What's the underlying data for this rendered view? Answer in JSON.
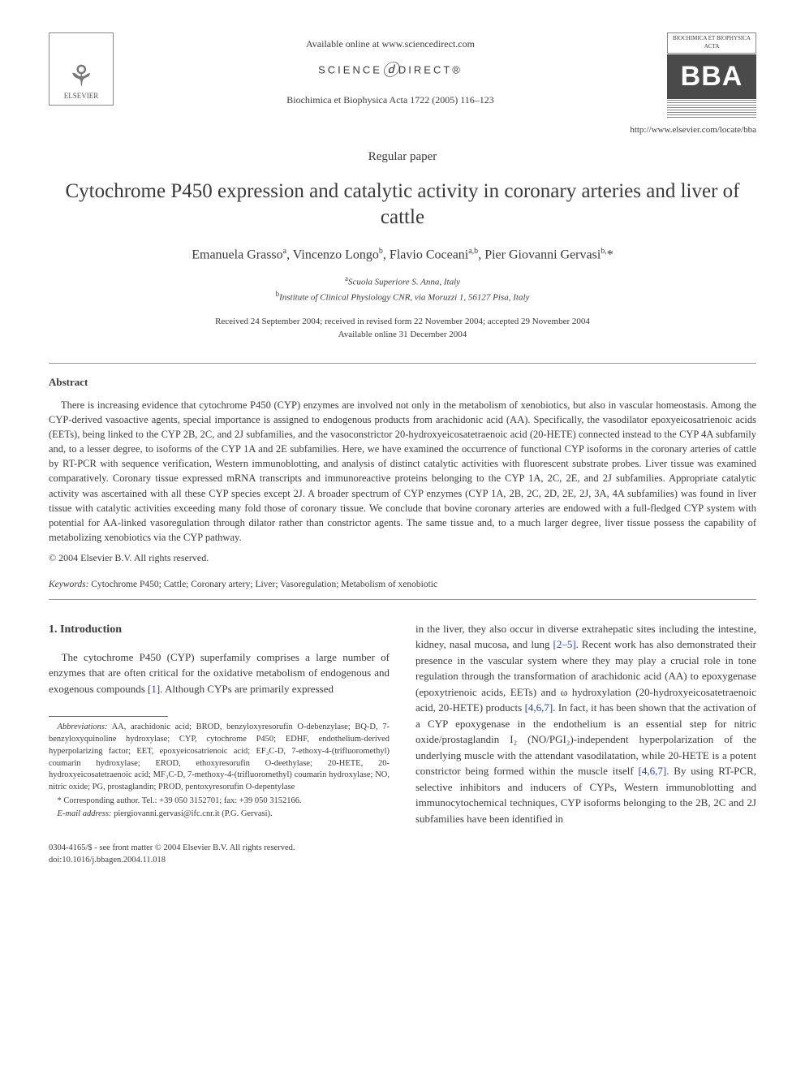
{
  "header": {
    "available_online": "Available online at www.sciencedirect.com",
    "sciencedirect_left": "SCIENCE",
    "sciencedirect_right": "DIRECT®",
    "journal_ref": "Biochimica et Biophysica Acta 1722 (2005) 116–123",
    "elsevier_label": "ELSEVIER",
    "bba_top": "BIOCHIMICA ET BIOPHYSICA ACTA",
    "bba_main": "BBA",
    "locate_url": "http://www.elsevier.com/locate/bba"
  },
  "paper": {
    "type": "Regular paper",
    "title": "Cytochrome P450 expression and catalytic activity in coronary arteries and liver of cattle",
    "authors_html": "Emanuela Grasso<sup>a</sup>, Vincenzo Longo<sup>b</sup>, Flavio Coceani<sup>a,b</sup>, Pier Giovanni Gervasi<sup>b,</sup>*",
    "affiliations": [
      {
        "sup": "a",
        "text": "Scuola Superiore S. Anna, Italy"
      },
      {
        "sup": "b",
        "text": "Institute of Clinical Physiology CNR, via Moruzzi 1, 56127 Pisa, Italy"
      }
    ],
    "dates_line1": "Received 24 September 2004; received in revised form 22 November 2004; accepted 29 November 2004",
    "dates_line2": "Available online 31 December 2004"
  },
  "abstract": {
    "heading": "Abstract",
    "body": "There is increasing evidence that cytochrome P450 (CYP) enzymes are involved not only in the metabolism of xenobiotics, but also in vascular homeostasis. Among the CYP-derived vasoactive agents, special importance is assigned to endogenous products from arachidonic acid (AA). Specifically, the vasodilator epoxyeicosatrienoic acids (EETs), being linked to the CYP 2B, 2C, and 2J subfamilies, and the vasoconstrictor 20-hydroxyeicosatetraenoic acid (20-HETE) connected instead to the CYP 4A subfamily and, to a lesser degree, to isoforms of the CYP 1A and 2E subfamilies. Here, we have examined the occurrence of functional CYP isoforms in the coronary arteries of cattle by RT-PCR with sequence verification, Western immunoblotting, and analysis of distinct catalytic activities with fluorescent substrate probes. Liver tissue was examined comparatively. Coronary tissue expressed mRNA transcripts and immunoreactive proteins belonging to the CYP 1A, 2C, 2E, and 2J subfamilies. Appropriate catalytic activity was ascertained with all these CYP species except 2J. A broader spectrum of CYP enzymes (CYP 1A, 2B, 2C, 2D, 2E, 2J, 3A, 4A subfamilies) was found in liver tissue with catalytic activities exceeding many fold those of coronary tissue. We conclude that bovine coronary arteries are endowed with a full-fledged CYP system with potential for AA-linked vasoregulation through dilator rather than constrictor agents. The same tissue and, to a much larger degree, liver tissue possess the capability of metabolizing xenobiotics via the CYP pathway.",
    "copyright": "© 2004 Elsevier B.V. All rights reserved."
  },
  "keywords": {
    "label": "Keywords:",
    "text": " Cytochrome P450; Cattle; Coronary artery; Liver; Vasoregulation; Metabolism of xenobiotic"
  },
  "intro": {
    "heading": "1. Introduction",
    "col1_p1_pre": "The cytochrome P450 (CYP) superfamily comprises a large number of enzymes that are often critical for the oxidative metabolism of endogenous and exogenous compounds ",
    "ref1": "[1]",
    "col1_p1_post": ". Although CYPs are primarily expressed",
    "col2_pre1": "in the liver, they also occur in diverse extrahepatic sites including the intestine, kidney, nasal mucosa, and lung ",
    "ref2_5": "[2–5]",
    "col2_mid1": ". Recent work has also demonstrated their presence in the vascular system where they may play a crucial role in tone regulation through the transformation of arachidonic acid (AA) to epoxygenase (epoxytrienoic acids, EETs) and ω hydroxylation (20-hydroxyeicosatetraenoic acid, 20-HETE) products ",
    "ref467a": "[4,6,7]",
    "col2_mid2": ". In fact, it has been shown that the activation of a CYP epoxygenase in the endothelium is an essential step for nitric oxide/prostaglandin I₂ (NO/PGI₂)-independent hyperpolarization of the underlying muscle with the attendant vasodilatation, while 20-HETE is a potent constrictor being formed within the muscle itself ",
    "ref467b": "[4,6,7]",
    "col2_post": ". By using RT-PCR, selective inhibitors and inducers of CYPs, Western immunoblotting and immunocytochemical techniques, CYP isoforms belonging to the 2B, 2C and 2J subfamilies have been identified in"
  },
  "footnotes": {
    "abbrev_label": "Abbreviations:",
    "abbrev_text": " AA, arachidonic acid; BROD, benzyloxyresorufin O-debenzylase; BQ-D, 7-benzyloxyquinoline hydroxylase; CYP, cytochrome P450; EDHF, endothelium-derived hyperpolarizing factor; EET, epoxyeicosatrienoic acid; EF₃C-D, 7-ethoxy-4-(trifluoromethyl) coumarin hydroxylase; EROD, ethoxyresorufin O-deethylase; 20-HETE, 20-hydroxyeicosatetraenoic acid; MF₃C-D, 7-methoxy-4-(trifluoromethyl) coumarin hydroxylase; NO, nitric oxide; PG, prostaglandin; PROD, pentoxyresorufin O-depentylase",
    "corr": "* Corresponding author. Tel.: +39 050 3152701; fax: +39 050 3152166.",
    "email_label": "E-mail address:",
    "email": " piergiovanni.gervasi@ifc.cnr.it (P.G. Gervasi)."
  },
  "bottom": {
    "line1": "0304-4165/$ - see front matter © 2004 Elsevier B.V. All rights reserved.",
    "line2": "doi:10.1016/j.bbagen.2004.11.018"
  },
  "colors": {
    "ref_link": "#2040d0",
    "text": "#3a3a3a",
    "bba_bg": "#4a4a4a"
  }
}
